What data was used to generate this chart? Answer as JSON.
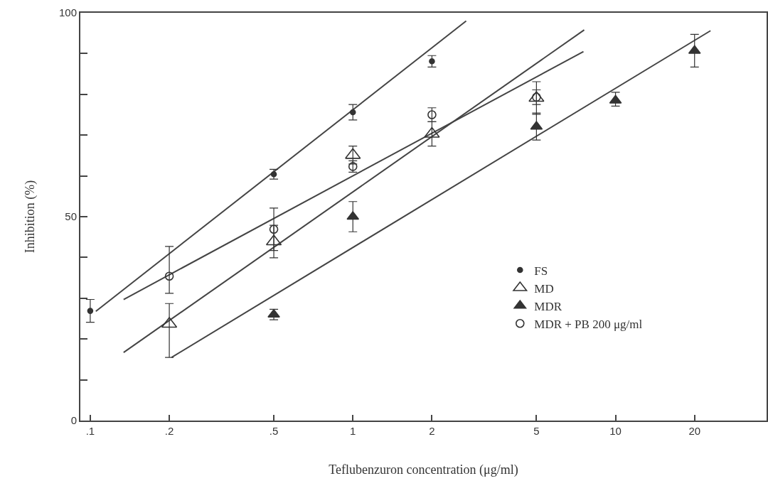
{
  "chart_data": {
    "type": "scatter",
    "xlabel": "Teflubenzuron concentration (μg/ml)",
    "ylabel": "Inhibition (%)",
    "log": "x",
    "xlim": [
      0.0917,
      37.6
    ],
    "ylim": [
      0,
      100
    ],
    "xticks": [
      {
        "value": 0.1,
        "label": ".1"
      },
      {
        "value": 0.2,
        "label": ".2"
      },
      {
        "value": 0.5,
        "label": ".5"
      },
      1,
      2,
      5,
      10,
      20
    ],
    "yticks": [
      0,
      {
        "value": 10,
        "label": null
      },
      {
        "value": 20,
        "label": null
      },
      {
        "value": 30,
        "label": null
      },
      {
        "value": 40,
        "label": null
      },
      50,
      {
        "value": 60,
        "label": null
      },
      {
        "value": 70,
        "label": null
      },
      {
        "value": 80,
        "label": null
      },
      {
        "value": 90,
        "label": null
      },
      100
    ],
    "grid": false,
    "legend": "bottom right",
    "series": [
      {
        "name": "FS",
        "marker": "circle",
        "color": "#333333",
        "x": [
          0.1,
          0.5,
          1,
          2
        ],
        "values": [
          26.9,
          60.4,
          75.6,
          88.1
        ],
        "errors": [
          2.8,
          1.2,
          1.9,
          1.4
        ]
      },
      {
        "name": "MD",
        "marker": "triangle-open",
        "color": "#333333",
        "x": [
          0.2,
          0.5,
          1,
          2,
          5
        ],
        "values": [
          23.7,
          43.9,
          65.1,
          70.3,
          79.1
        ],
        "errors": [
          [
            15.5,
            28.7
          ],
          4,
          2.2,
          3,
          4
        ]
      },
      {
        "name": "MDR",
        "marker": "triangle",
        "color": "#333333",
        "x": [
          0.5,
          1,
          5,
          10,
          20
        ],
        "values": [
          26,
          50,
          72.1,
          78.5,
          90.7
        ],
        "errors": [
          1.3,
          3.7,
          3.3,
          [
            77.1,
            80.5
          ],
          4
        ]
      },
      {
        "name": "MDR + PB 200 μg/ml",
        "marker": "circle-open",
        "color": "#333333",
        "x": [
          0.2,
          0.5,
          1,
          2,
          5
        ],
        "values": [
          35.4,
          46.9,
          62.3,
          75,
          79.3
        ],
        "errors": [
          [
            31.2,
            42.7
          ],
          5.2,
          1.4,
          1.7,
          1.8
        ]
      },
      {
        "type": "line",
        "marker": "none",
        "color": "#444444",
        "x": [
          0.105,
          2.7
        ],
        "values": [
          26.8,
          98
        ]
      },
      {
        "type": "line",
        "marker": "none",
        "color": "#444444",
        "x": [
          0.134,
          7.6
        ],
        "values": [
          16.7,
          95.8
        ]
      },
      {
        "type": "line",
        "marker": "none",
        "color": "#444444",
        "x": [
          0.204,
          23
        ],
        "values": [
          15.5,
          95.6
        ]
      },
      {
        "type": "line",
        "marker": "none",
        "color": "#444444",
        "x": [
          0.134,
          7.55
        ],
        "values": [
          29.7,
          90.5
        ]
      }
    ]
  }
}
